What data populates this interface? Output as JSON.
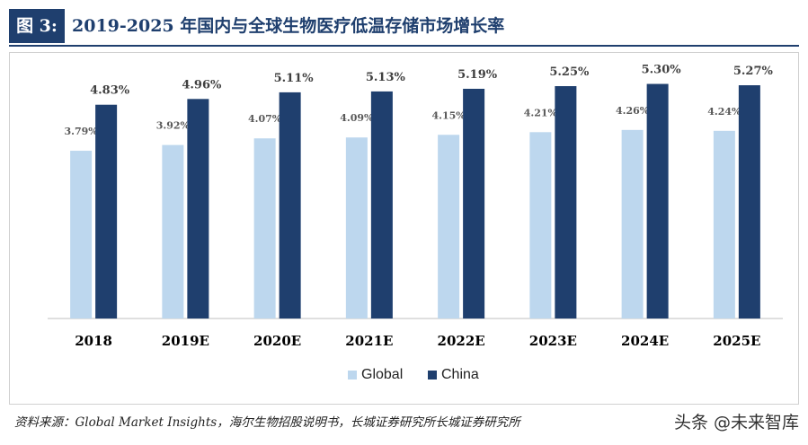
{
  "header": {
    "figure_label": "图 3:",
    "title": "2019-2025 年国内与全球生物医疗低温存储市场增长率"
  },
  "chart_data": {
    "type": "bar",
    "categories": [
      "2018",
      "2019E",
      "2020E",
      "2021E",
      "2022E",
      "2023E",
      "2024E",
      "2025E"
    ],
    "series": [
      {
        "name": "Global",
        "color": "#bdd7ee",
        "values": [
          3.79,
          3.92,
          4.07,
          4.09,
          4.15,
          4.21,
          4.26,
          4.24
        ],
        "labels": [
          "3.79%",
          "3.92%",
          "4.07%",
          "4.09%",
          "4.15%",
          "4.21%",
          "4.26%",
          "4.24%"
        ]
      },
      {
        "name": "China",
        "color": "#1f3f6e",
        "values": [
          4.83,
          4.96,
          5.11,
          5.13,
          5.19,
          5.25,
          5.3,
          5.27
        ],
        "labels": [
          "4.83%",
          "4.96%",
          "5.11%",
          "5.13%",
          "5.19%",
          "5.25%",
          "5.30%",
          "5.27%"
        ]
      }
    ],
    "title": "",
    "xlabel": "",
    "ylabel": "",
    "ylim": [
      0,
      6
    ],
    "legend": "bottom-center",
    "grid": false
  },
  "footer": {
    "source": "资料来源：Global Market Insights，海尔生物招股说明书，长城证券研究所长城证券研究所",
    "watermark": "头条 @未来智库"
  }
}
